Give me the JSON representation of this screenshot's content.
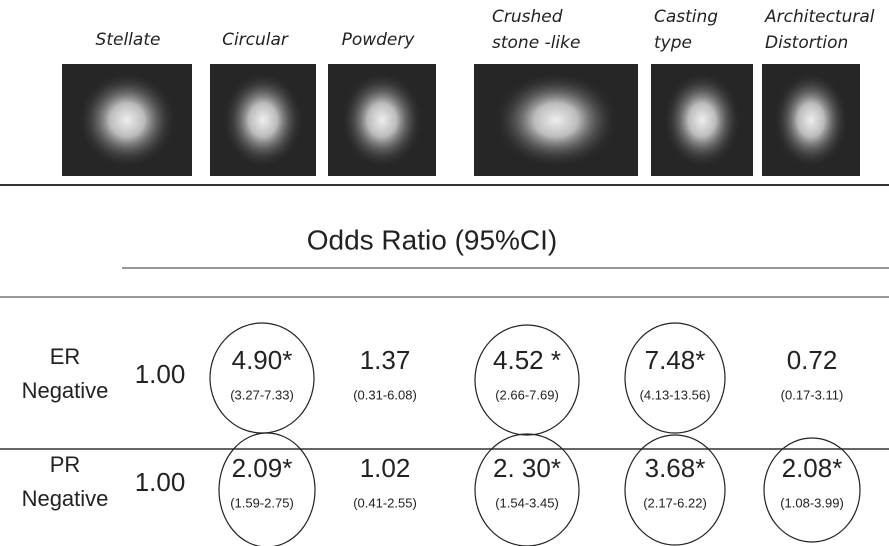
{
  "header": {
    "patterns": [
      [
        "Stellate"
      ],
      [
        "Circular"
      ],
      [
        "Powdery"
      ],
      [
        "Crushed",
        "stone -like"
      ],
      [
        "Casting",
        "type"
      ],
      [
        "Architectural",
        "Distortion"
      ]
    ]
  },
  "title": "Odds Ratio (95%CI)",
  "rows": [
    {
      "label": [
        "ER",
        "Negative"
      ],
      "reference": "1.00",
      "cells": [
        {
          "or": "4.90*",
          "ci": "(3.27-7.33)"
        },
        {
          "or": "1.37",
          "ci": "(0.31-6.08)"
        },
        {
          "or": "4.52 *",
          "ci": "(2.66-7.69)"
        },
        {
          "or": "7.48*",
          "ci": "(4.13-13.56)"
        },
        {
          "or": "0.72",
          "ci": "(0.17-3.11)"
        }
      ]
    },
    {
      "label": [
        "PR",
        "Negative"
      ],
      "reference": "1.00",
      "cells": [
        {
          "or": "2.09*",
          "ci": "(1.59-2.75)"
        },
        {
          "or": "1.02",
          "ci": "(0.41-2.55)"
        },
        {
          "or": "2. 30*",
          "ci": "(1.54-3.45)"
        },
        {
          "or": "3.68*",
          "ci": "(2.17-6.22)"
        },
        {
          "or": "2.08*",
          "ci": "(1.08-3.99)"
        }
      ]
    }
  ]
}
